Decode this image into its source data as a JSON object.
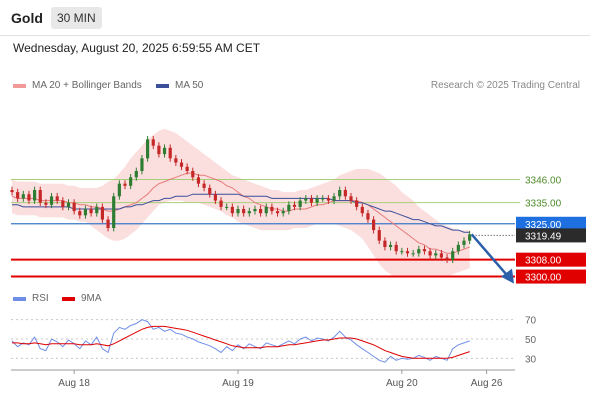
{
  "header": {
    "symbol": "Gold",
    "interval": "30 MIN"
  },
  "timestamp": "Wednesday, August 20, 2025 6:59:55 AM CET",
  "legend": {
    "bb_label": "MA 20 + Bollinger Bands",
    "ma50_label": "MA 50",
    "credit": "Research © 2025 Trading Central",
    "rsi_label": "RSI",
    "rsi_ma_label": "9MA"
  },
  "colors": {
    "bull": "#2e7d32",
    "bear": "#c62828",
    "band": "#f9c9c9",
    "ma20": "#e87a7a",
    "ma50": "#3b4f9a",
    "support": "#e00000",
    "pivot_line": "#3a78c8",
    "resistance": "#a7cf7a",
    "rsi": "#6f8ee8",
    "rsi_ma": "#e00000"
  },
  "chart_data": {
    "type": "line",
    "main": {
      "ylim": [
        3296,
        3386
      ],
      "current_price": "3319.49",
      "levels": [
        {
          "value": 3346.0,
          "label": "3346.00",
          "kind": "resistance"
        },
        {
          "value": 3335.0,
          "label": "3335.00",
          "kind": "resistance"
        },
        {
          "value": 3325.0,
          "label": "3325.00",
          "kind": "pivot"
        },
        {
          "value": 3308.0,
          "label": "3308.00",
          "kind": "support"
        },
        {
          "value": 3300.0,
          "label": "3300.00",
          "kind": "support"
        }
      ],
      "close": [
        3340,
        3337,
        3339,
        3336,
        3341,
        3335,
        3334,
        3338,
        3336,
        3333,
        3335,
        3331,
        3329,
        3332,
        3330,
        3333,
        3327,
        3323,
        3338,
        3344,
        3343,
        3347,
        3350,
        3356,
        3365,
        3362,
        3358,
        3361,
        3356,
        3354,
        3352,
        3350,
        3347,
        3344,
        3342,
        3339,
        3336,
        3333,
        3333,
        3330,
        3332,
        3330,
        3331,
        3332,
        3330,
        3333,
        3331,
        3330,
        3331,
        3334,
        3333,
        3336,
        3337,
        3335,
        3337,
        3337,
        3336,
        3338,
        3341,
        3338,
        3336,
        3333,
        3330,
        3327,
        3322,
        3317,
        3314,
        3315,
        3312,
        3312,
        3311,
        3311,
        3313,
        3312,
        3310,
        3311,
        3309,
        3308,
        3312,
        3315,
        3317,
        3320
      ],
      "ma20": [
        3338,
        3337,
        3337,
        3337,
        3337,
        3336,
        3336,
        3336,
        3336,
        3336,
        3335,
        3335,
        3334,
        3334,
        3333,
        3333,
        3332,
        3331,
        3331,
        3332,
        3333,
        3334,
        3335,
        3337,
        3339,
        3342,
        3344,
        3345,
        3346,
        3347,
        3348,
        3349,
        3349,
        3348,
        3348,
        3347,
        3346,
        3345,
        3343,
        3342,
        3340,
        3338,
        3337,
        3335,
        3334,
        3333,
        3332,
        3332,
        3331,
        3331,
        3332,
        3332,
        3332,
        3333,
        3334,
        3334,
        3335,
        3336,
        3336,
        3336,
        3336,
        3336,
        3335,
        3334,
        3332,
        3330,
        3328,
        3326,
        3324,
        3322,
        3320,
        3318,
        3316,
        3315,
        3313,
        3313,
        3312,
        3311,
        3311,
        3312,
        3313,
        3314
      ],
      "bb_upper": [
        3346,
        3345,
        3345,
        3345,
        3345,
        3344,
        3344,
        3344,
        3344,
        3344,
        3343,
        3343,
        3342,
        3342,
        3342,
        3342,
        3343,
        3345,
        3346,
        3349,
        3352,
        3356,
        3359,
        3362,
        3365,
        3367,
        3369,
        3370,
        3369,
        3368,
        3366,
        3364,
        3362,
        3360,
        3358,
        3356,
        3354,
        3352,
        3350,
        3348,
        3347,
        3346,
        3345,
        3344,
        3343,
        3342,
        3341,
        3341,
        3340,
        3340,
        3340,
        3341,
        3341,
        3342,
        3343,
        3344,
        3345,
        3346,
        3348,
        3349,
        3350,
        3351,
        3351,
        3351,
        3350,
        3349,
        3347,
        3345,
        3343,
        3340,
        3338,
        3336,
        3333,
        3331,
        3329,
        3327,
        3325,
        3324,
        3323,
        3322,
        3322,
        3322
      ],
      "bb_lower": [
        3330,
        3329,
        3329,
        3329,
        3329,
        3328,
        3328,
        3328,
        3328,
        3328,
        3327,
        3327,
        3326,
        3326,
        3324,
        3322,
        3320,
        3318,
        3317,
        3317,
        3318,
        3320,
        3322,
        3325,
        3328,
        3331,
        3334,
        3335,
        3336,
        3336,
        3336,
        3335,
        3335,
        3335,
        3334,
        3333,
        3332,
        3331,
        3329,
        3328,
        3326,
        3325,
        3324,
        3323,
        3322,
        3322,
        3322,
        3322,
        3322,
        3322,
        3323,
        3323,
        3323,
        3324,
        3325,
        3325,
        3325,
        3325,
        3324,
        3323,
        3322,
        3320,
        3318,
        3314,
        3310,
        3306,
        3303,
        3301,
        3300,
        3300,
        3300,
        3300,
        3300,
        3300,
        3300,
        3300,
        3300,
        3300,
        3301,
        3302,
        3303,
        3304
      ],
      "ma50": [
        3334,
        3334,
        3333,
        3333,
        3333,
        3333,
        3333,
        3333,
        3333,
        3333,
        3333,
        3332,
        3332,
        3332,
        3332,
        3332,
        3332,
        3332,
        3332,
        3332,
        3333,
        3333,
        3334,
        3334,
        3335,
        3336,
        3336,
        3337,
        3337,
        3338,
        3338,
        3338,
        3339,
        3339,
        3339,
        3339,
        3339,
        3339,
        3339,
        3339,
        3339,
        3338,
        3338,
        3338,
        3338,
        3338,
        3337,
        3337,
        3337,
        3337,
        3337,
        3337,
        3337,
        3337,
        3337,
        3337,
        3337,
        3336,
        3336,
        3336,
        3336,
        3335,
        3335,
        3334,
        3333,
        3332,
        3331,
        3331,
        3330,
        3329,
        3328,
        3327,
        3327,
        3326,
        3325,
        3324,
        3324,
        3323,
        3322,
        3322,
        3321,
        3321
      ],
      "projection": {
        "from": 3320,
        "to": 3299
      }
    },
    "rsi": {
      "ylim": [
        20,
        80
      ],
      "ticks": [
        {
          "value": 70,
          "label": "70"
        },
        {
          "value": 50,
          "label": "50"
        },
        {
          "value": 30,
          "label": "30"
        }
      ],
      "rsi": [
        48,
        42,
        46,
        44,
        52,
        40,
        38,
        50,
        47,
        42,
        49,
        45,
        40,
        48,
        44,
        52,
        40,
        36,
        56,
        62,
        60,
        64,
        66,
        70,
        68,
        60,
        62,
        58,
        60,
        56,
        55,
        52,
        50,
        47,
        45,
        43,
        40,
        36,
        42,
        38,
        44,
        40,
        45,
        42,
        40,
        46,
        44,
        42,
        45,
        48,
        45,
        50,
        52,
        48,
        51,
        50,
        48,
        52,
        58,
        52,
        49,
        44,
        40,
        36,
        32,
        28,
        26,
        32,
        28,
        30,
        29,
        30,
        33,
        31,
        28,
        32,
        30,
        28,
        40,
        44,
        46,
        48
      ],
      "ma": [
        46,
        46,
        45,
        45,
        46,
        45,
        44,
        45,
        45,
        45,
        45,
        45,
        44,
        44,
        44,
        45,
        44,
        43,
        45,
        48,
        51,
        54,
        57,
        60,
        62,
        63,
        63,
        63,
        62,
        61,
        60,
        59,
        57,
        55,
        53,
        51,
        49,
        47,
        45,
        43,
        42,
        41,
        41,
        41,
        41,
        42,
        42,
        42,
        43,
        44,
        44,
        45,
        46,
        47,
        48,
        49,
        49,
        50,
        51,
        51,
        51,
        50,
        48,
        46,
        44,
        41,
        38,
        36,
        34,
        32,
        31,
        30,
        30,
        30,
        30,
        30,
        30,
        30,
        31,
        33,
        35,
        37
      ]
    },
    "x_ticks": [
      {
        "label": "Aug 18",
        "index": 11
      },
      {
        "label": "Aug 19",
        "index": 40
      },
      {
        "label": "Aug 20",
        "index": 69
      },
      {
        "label": "Aug 26",
        "index": 84
      }
    ]
  }
}
